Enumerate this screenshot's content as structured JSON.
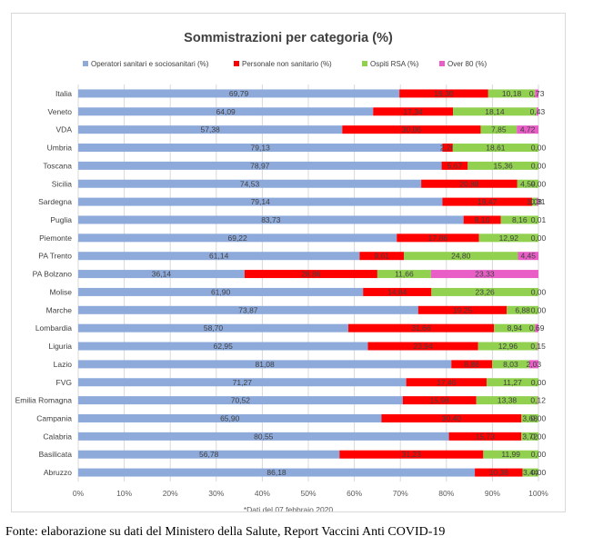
{
  "chart_data": {
    "type": "bar",
    "orientation": "horizontal",
    "stacked": true,
    "title": "Sommistrazioni  per categoria (%)",
    "note": "*Dati del 07 febbraio 2020",
    "xlim": [
      0,
      100
    ],
    "x_ticks": [
      "0%",
      "10%",
      "20%",
      "30%",
      "40%",
      "50%",
      "60%",
      "70%",
      "80%",
      "90%",
      "100%"
    ],
    "grid": true,
    "legend_position": "top",
    "categories": [
      "Italia",
      "Veneto",
      "VDA",
      "Umbria",
      "Toscana",
      "Sicilia",
      "Sardegna",
      "Puglia",
      "Piemonte",
      "PA Trento",
      "PA Bolzano",
      "Molise",
      "Marche",
      "Lombardia",
      "Liguria",
      "Lazio",
      "FVG",
      "Emilia Romagna",
      "Campania",
      "Calabria",
      "Basilicata",
      "Abruzzo"
    ],
    "series": [
      {
        "name": "Operatori sanitari e sociosanitari (%)",
        "color": "#8eaadb",
        "values": [
          69.79,
          64.09,
          57.38,
          79.13,
          78.97,
          74.53,
          79.14,
          83.73,
          69.22,
          61.14,
          36.14,
          61.9,
          73.87,
          58.7,
          62.95,
          81.08,
          71.27,
          70.52,
          65.9,
          80.55,
          56.78,
          86.18
        ],
        "labels": [
          "69,79",
          "64,09",
          "57,38",
          "79,13",
          "78,97",
          "74,53",
          "79,14",
          "83,73",
          "69,22",
          "61,14",
          "36,14",
          "61,90",
          "73,87",
          "58,70",
          "62,95",
          "81,08",
          "71,27",
          "70,52",
          "65,90",
          "80,55",
          "56,78",
          "86,18"
        ]
      },
      {
        "name": "Personale non sanitario (%)",
        "color": "#ff0000",
        "values": [
          19.3,
          17.34,
          30.06,
          2.26,
          5.67,
          20.88,
          19.47,
          8.1,
          17.86,
          9.61,
          28.86,
          14.84,
          19.25,
          31.66,
          23.94,
          8.86,
          17.46,
          15.98,
          30.4,
          15.73,
          31.23,
          10.38
        ],
        "labels": [
          "19,30",
          "17,34",
          "30,06",
          "2,26",
          "5,67",
          "20,88",
          "19,47",
          "8,10",
          "17,86",
          "9,61",
          "28,86",
          "14,84",
          "19,25",
          "31,66",
          "23,94",
          "8,86",
          "17,46",
          "15,98",
          "30,40",
          "15,73",
          "31,23",
          "10,38"
        ]
      },
      {
        "name": "Ospiti RSA (%)",
        "color": "#92d050",
        "values": [
          10.18,
          18.14,
          7.85,
          18.61,
          15.36,
          4.59,
          1.08,
          8.16,
          12.92,
          24.8,
          11.66,
          23.26,
          6.88,
          8.94,
          12.96,
          8.03,
          11.27,
          13.38,
          3.68,
          3.72,
          11.99,
          3.44
        ],
        "labels": [
          "10,18",
          "18,14",
          "7,85",
          "18,61",
          "15,36",
          "4,59",
          "1,08",
          "8,16",
          "12,92",
          "24,80",
          "11,66",
          "23,26",
          "6,88",
          "8,94",
          "12,96",
          "8,03",
          "11,27",
          "13,38",
          "3,68",
          "3,72",
          "11,99",
          "3,44"
        ]
      },
      {
        "name": "Over 80 (%)",
        "color": "#e85ec6",
        "values": [
          0.73,
          0.43,
          4.72,
          0.0,
          0.0,
          0.0,
          0.31,
          0.01,
          0.0,
          4.45,
          23.33,
          0.0,
          0.0,
          0.69,
          0.15,
          2.03,
          0.0,
          0.12,
          0.0,
          0.0,
          0.0,
          0.0
        ],
        "labels": [
          "0,73",
          "0,43",
          "4,72",
          "0,00",
          "0,00",
          "0,00",
          "0,31",
          "0,01",
          "0,00",
          "4,45",
          "23,33",
          "0,00",
          "0,00",
          "0,69",
          "0,15",
          "2,03",
          "0,00",
          "0,12",
          "0,00",
          "0,00",
          "0,00",
          "0,00"
        ]
      }
    ]
  },
  "caption": "Fonte: elaborazione su dati del Ministero della Salute, Report Vaccini Anti COVID-19"
}
